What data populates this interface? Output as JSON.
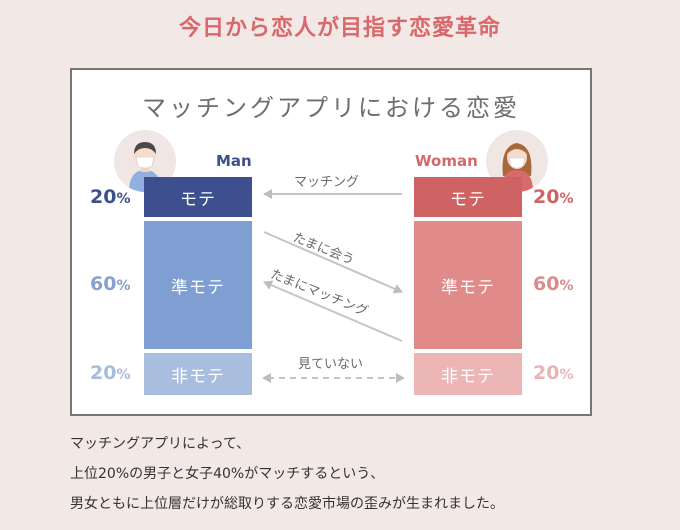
{
  "page_title": "今日から恋人が目指す恋愛革命",
  "diagram": {
    "title": "マッチングアプリにおける恋愛",
    "man": {
      "label": "Man",
      "tiers": [
        {
          "label": "モテ",
          "percent": "20",
          "unit": "%"
        },
        {
          "label": "準モテ",
          "percent": "60",
          "unit": "%"
        },
        {
          "label": "非モテ",
          "percent": "20",
          "unit": "%"
        }
      ]
    },
    "woman": {
      "label": "Woman",
      "tiers": [
        {
          "label": "モテ",
          "percent": "20",
          "unit": "%"
        },
        {
          "label": "準モテ",
          "percent": "60",
          "unit": "%"
        },
        {
          "label": "非モテ",
          "percent": "20",
          "unit": "%"
        }
      ]
    },
    "arrows": {
      "matching": "マッチング",
      "tamani_au": "たまに会う",
      "tamani_matching": "たまにマッチング",
      "miteinai": "見ていない"
    },
    "icons": {
      "man_avatar": "man-avatar-icon",
      "woman_avatar": "woman-avatar-icon"
    },
    "colors": {
      "man_top": "#3d4f8f",
      "man_mid": "#7f9ed1",
      "man_bot": "#a9bedf",
      "woman_top": "#cf6363",
      "woman_mid": "#e08a8a",
      "woman_bot": "#ecb6b6",
      "accent": "#d9676b"
    }
  },
  "caption": {
    "line1": "マッチングアプリによって、",
    "line2": "上位20%の男子と女子40%がマッチするという、",
    "line3": "男女ともに上位層だけが総取りする恋愛市場の歪みが生まれました。"
  }
}
